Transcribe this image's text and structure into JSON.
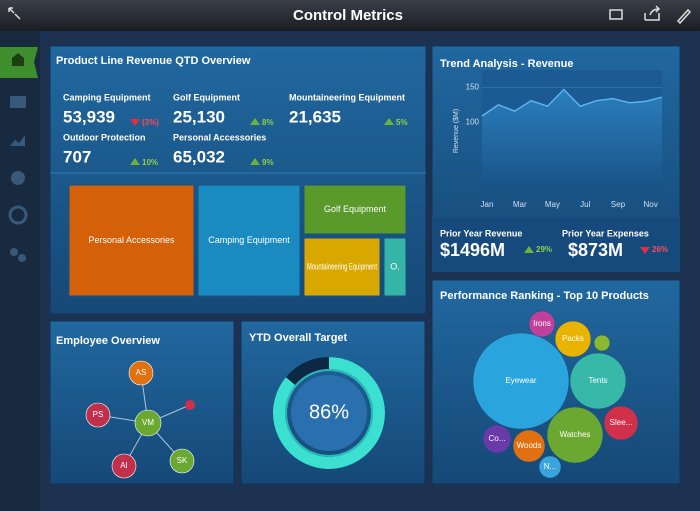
{
  "header": {
    "title": "Control Metrics"
  },
  "product_line": {
    "title": "Product Line Revenue QTD Overview",
    "kpis": [
      {
        "label": "Camping Equipment",
        "value": "53,939",
        "change": "(3%)",
        "trend": "down"
      },
      {
        "label": "Golf Equipment",
        "value": "25,130",
        "change": "8%",
        "trend": "up"
      },
      {
        "label": "Mountaineering Equipment",
        "value": "21,635",
        "change": "5%",
        "trend": "up"
      },
      {
        "label": "Outdoor Protection",
        "value": "707",
        "change": "10%",
        "trend": "up"
      },
      {
        "label": "Personal Accessories",
        "value": "65,032",
        "change": "9%",
        "trend": "up"
      }
    ],
    "treemap": [
      "Personal Accessories",
      "Camping Equipment",
      "Golf Equipment",
      "Mountaineering Equipment",
      "O."
    ]
  },
  "trend_chart": {
    "type": "line",
    "title": "Trend Analysis - Revenue",
    "y_label": "Revenue ($M)",
    "categories": [
      "Jan",
      null,
      "Mar",
      null,
      "May",
      null,
      "Jul",
      null,
      "Sep",
      null,
      "Nov",
      null
    ],
    "values": [
      109,
      125,
      116,
      131,
      123,
      147,
      123,
      131,
      134,
      128,
      130,
      136
    ],
    "ylim": [
      0,
      175
    ],
    "yticks": [
      100,
      150
    ],
    "color": "#5ab4ee"
  },
  "prior_year": [
    {
      "label": "Prior Year Revenue",
      "value": "$1496M",
      "change": "29%",
      "trend": "up"
    },
    {
      "label": "Prior Year Expenses",
      "value": "$873M",
      "change": "26%",
      "trend": "down"
    }
  ],
  "ranking": {
    "title": "Performance Ranking - Top 10 Products",
    "products": [
      "Eyewear",
      "Irons",
      "Packs",
      null,
      "Tents",
      "Slee...",
      "Watches",
      "Woods",
      "Co...",
      "N..."
    ]
  },
  "employee": {
    "title": "Employee Overview",
    "nodes": [
      {
        "label": "VM"
      },
      {
        "label": "AS"
      },
      {
        "label": "PS"
      },
      {
        "label": "AI"
      },
      {
        "label": "SK"
      }
    ]
  },
  "ytd_target": {
    "title": "YTD Overall Target",
    "value": 86,
    "value_label": "86%"
  }
}
